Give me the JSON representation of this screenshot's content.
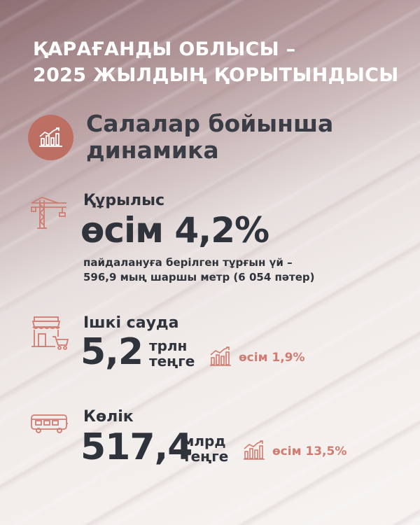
{
  "header": {
    "line1": "ҚАРАҒАНДЫ ОБЛЫСЫ –",
    "line2": "2025 ЖЫЛДЫҢ ҚОРЫТЫНДЫСЫ"
  },
  "section": {
    "icon": "growth-chart-icon",
    "title_line1": "Салалар бойынша",
    "title_line2": "динамика"
  },
  "construction": {
    "icon": "crane-icon",
    "label": "Құрылыс",
    "value": "өсім 4,2%",
    "desc_line1": "пайдалануға берілген тұрғын үй –",
    "desc_line2": "596,9 мың шаршы метр (6 054 пәтер)"
  },
  "trade": {
    "icon": "shop-cart-icon",
    "label": "Ішкі сауда",
    "value": "5,2",
    "unit_line1": "трлн",
    "unit_line2": "теңге",
    "growth_icon": "bar-chart-up-icon",
    "growth": "өсім 1,9%"
  },
  "transport": {
    "icon": "bus-icon",
    "label": "Көлік",
    "value": "517,4",
    "unit_line1": "млрд",
    "unit_line2": "теңге",
    "growth_icon": "bar-chart-up-icon",
    "growth": "өсім 13,5%"
  },
  "colors": {
    "accent": "#bd6f64",
    "growth_text": "#cf7d72",
    "text_dark": "#2f333b",
    "header_text": "#ffffff"
  }
}
